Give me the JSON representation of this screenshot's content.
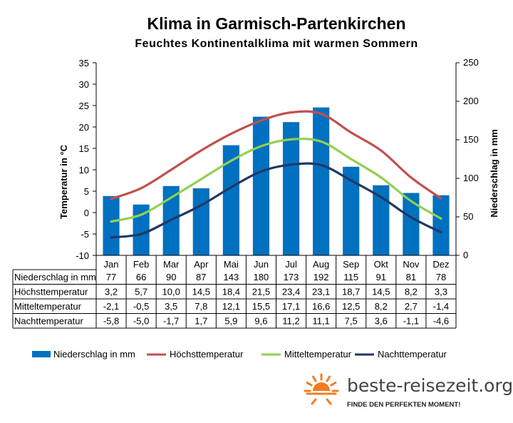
{
  "chart_data": {
    "type": "bar",
    "title": "Klima in Garmisch-Partenkirchen",
    "subtitle": "Feuchtes Kontinentalklima  mit  warmen  Sommern",
    "categories": [
      "Jan",
      "Feb",
      "Mar",
      "Apr",
      "Mai",
      "Jun",
      "Jul",
      "Aug",
      "Sep",
      "Okt",
      "Nov",
      "Dez"
    ],
    "ylabel_left": "Temperatur in °C",
    "ylabel_right": "Niederschlag in mm",
    "ylim_left": [
      -10,
      35
    ],
    "ylim_right": [
      0,
      250
    ],
    "yticks_left": [
      -10,
      -5,
      0,
      5,
      10,
      15,
      20,
      25,
      30,
      35
    ],
    "yticks_right": [
      0,
      50,
      100,
      150,
      200,
      250
    ],
    "grid": false,
    "legend_position": "bottom",
    "series": [
      {
        "name": "Niederschlag in mm",
        "type": "bar",
        "axis": "right",
        "color": "#0070c0",
        "values": [
          77,
          66,
          90,
          87,
          143,
          180,
          173,
          192,
          115,
          91,
          81,
          78
        ],
        "labels": [
          "77",
          "66",
          "90",
          "87",
          "143",
          "180",
          "173",
          "192",
          "115",
          "91",
          "81",
          "78"
        ]
      },
      {
        "name": "Höchsttemperatur",
        "type": "line",
        "axis": "left",
        "color": "#c0504d",
        "values": [
          3.2,
          5.7,
          10.0,
          14.5,
          18.4,
          21.5,
          23.4,
          23.1,
          18.7,
          14.5,
          8.2,
          3.3
        ],
        "labels": [
          "3,2",
          "5,7",
          "10,0",
          "14,5",
          "18,4",
          "21,5",
          "23,4",
          "23,1",
          "18,7",
          "14,5",
          "8,2",
          "3,3"
        ]
      },
      {
        "name": "Mitteltemperatur",
        "type": "line",
        "axis": "left",
        "color": "#92d050",
        "values": [
          -2.1,
          -0.5,
          3.5,
          7.8,
          12.1,
          15.5,
          17.1,
          16.6,
          12.5,
          8.2,
          2.7,
          -1.4
        ],
        "labels": [
          "-2,1",
          "-0,5",
          "3,5",
          "7,8",
          "12,1",
          "15,5",
          "17,1",
          "16,6",
          "12,5",
          "8,2",
          "2,7",
          "-1,4"
        ]
      },
      {
        "name": "Nachttemperatur",
        "type": "line",
        "axis": "left",
        "color": "#1f3864",
        "values": [
          -5.8,
          -5.0,
          -1.7,
          1.7,
          5.9,
          9.6,
          11.2,
          11.1,
          7.5,
          3.6,
          -1.1,
          -4.6
        ],
        "labels": [
          "-5,8",
          "-5,0",
          "-1,7",
          "1,7",
          "5,9",
          "9,6",
          "11,2",
          "11,1",
          "7,5",
          "3,6",
          "-1,1",
          "-4,6"
        ]
      }
    ]
  },
  "brand": {
    "name": "beste-reisezeit.org",
    "slogan": "FINDE DEN PERFEKTEN MOMENT!",
    "icon": "sun-icon",
    "color": "#f47c20"
  }
}
